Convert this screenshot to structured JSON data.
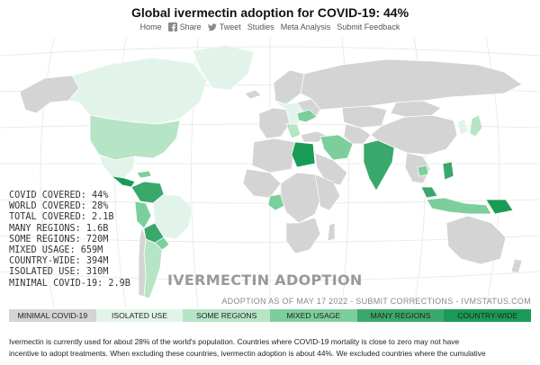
{
  "header": {
    "title": "Global ivermectin adoption for COVID-19: 44%",
    "nav": [
      {
        "label": "Home",
        "icon": ""
      },
      {
        "label": "Share",
        "icon": "facebook-icon"
      },
      {
        "label": "Tweet",
        "icon": "twitter-icon"
      },
      {
        "label": "Studies",
        "icon": ""
      },
      {
        "label": "Meta Analysis",
        "icon": ""
      },
      {
        "label": "Submit Feedback",
        "icon": ""
      }
    ]
  },
  "stats": [
    "COVID COVERED: 44%",
    "WORLD COVERED: 28%",
    "TOTAL COVERED: 2.1B",
    "MANY REGIONS: 1.6B",
    "SOME REGIONS: 720M",
    "MIXED USAGE: 659M",
    "COUNTRY-WIDE: 394M",
    "ISOLATED USE: 310M",
    "MINIMAL COVID-19: 2.9B"
  ],
  "map_overlay": {
    "heading": "IVERMECTIN ADOPTION",
    "note": "ADOPTION AS OF MAY 17 2022 - SUBMIT CORRECTIONS - IVMSTATUS.COM"
  },
  "legend": [
    {
      "label": "MINIMAL COVID-19",
      "color": "#d4d4d4"
    },
    {
      "label": "ISOLATED USE",
      "color": "#e2f4ea"
    },
    {
      "label": "SOME REGIONS",
      "color": "#b6e5c6"
    },
    {
      "label": "MIXED USAGE",
      "color": "#7ccf9c"
    },
    {
      "label": "MANY REGIONS",
      "color": "#3aa86b"
    },
    {
      "label": "COUNTRY-WIDE",
      "color": "#1a9b55"
    }
  ],
  "colors": {
    "minimal": "#d4d4d4",
    "isolated": "#e2f4ea",
    "some": "#b6e5c6",
    "mixed": "#7ccf9c",
    "many": "#3aa86b",
    "country": "#1a9b55",
    "graticule": "#e6e6e6"
  },
  "footer": {
    "line1": "Ivermectin is currently used for about 28% of the world's population. Countries where COVID-19 mortality is close to zero may not have",
    "line2": "incentive to adopt treatments. When excluding these countries, ivermectin adoption is about 44%. We excluded countries where the cumulative"
  }
}
